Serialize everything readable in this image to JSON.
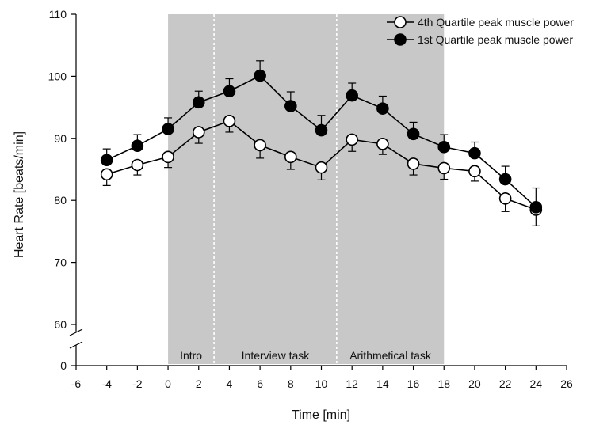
{
  "chart_data": {
    "type": "line",
    "title": "",
    "xlabel": "Time [min]",
    "ylabel": "Heart Rate [beats/min]",
    "xlim": [
      -6,
      26
    ],
    "ylim": [
      60,
      110
    ],
    "x_ticks": [
      -6,
      -4,
      -2,
      0,
      2,
      4,
      6,
      8,
      10,
      12,
      14,
      16,
      18,
      20,
      22,
      24,
      26
    ],
    "y_ticks": [
      0,
      60,
      70,
      80,
      90,
      100,
      110
    ],
    "y_axis_break": "between 0 and 60",
    "phases": [
      {
        "label": "Intro",
        "x_start": 0,
        "x_end": 3
      },
      {
        "label": "Interview task",
        "x_start": 3,
        "x_end": 11
      },
      {
        "label": "Arithmetical task",
        "x_start": 11,
        "x_end": 18
      }
    ],
    "phase_color": "#c8c8c8",
    "legend_position": "top-right",
    "x": [
      -4,
      -2,
      0,
      2,
      4,
      6,
      8,
      10,
      12,
      14,
      16,
      18,
      20,
      22,
      24
    ],
    "series": [
      {
        "name": "4th Quartile peak muscle power",
        "marker": "open-circle",
        "color": "#000000",
        "values": [
          84.2,
          85.7,
          87.0,
          91.0,
          92.8,
          88.9,
          87.0,
          85.3,
          89.8,
          89.1,
          85.9,
          85.2,
          84.7,
          80.3,
          78.5
        ],
        "errors": [
          1.8,
          1.6,
          1.7,
          1.8,
          1.8,
          2.1,
          2.0,
          2.0,
          1.9,
          1.7,
          1.8,
          1.8,
          1.6,
          2.1,
          2.6
        ]
      },
      {
        "name": "1st Quartile peak muscle power",
        "marker": "filled-circle",
        "color": "#000000",
        "values": [
          86.5,
          88.8,
          91.5,
          95.8,
          97.6,
          100.1,
          95.2,
          91.3,
          96.9,
          94.8,
          90.7,
          88.6,
          87.6,
          83.4,
          78.9
        ],
        "errors": [
          1.8,
          1.8,
          1.8,
          1.8,
          2.0,
          2.4,
          2.3,
          2.4,
          2.0,
          2.0,
          1.9,
          2.0,
          1.8,
          2.1,
          3.1
        ]
      }
    ]
  }
}
